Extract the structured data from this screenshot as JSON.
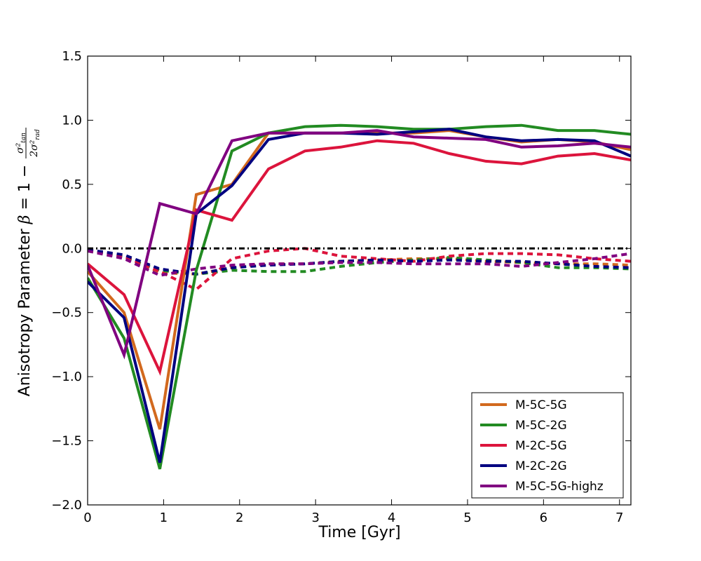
{
  "chart_data": {
    "type": "line",
    "title": "",
    "xlabel": "Time [Gyr]",
    "ylabel": {
      "prefix": "Anisotropy Parameter ",
      "beta": "β",
      "eq": " = 1 − ",
      "num": "σ²",
      "num_sub": "tan",
      "den": "2σ²",
      "den_sub": "rad"
    },
    "xlim": [
      0,
      7.15
    ],
    "ylim": [
      -2.0,
      1.5
    ],
    "xticks": [
      0,
      1,
      2,
      3,
      4,
      5,
      6,
      7
    ],
    "xtick_labels": [
      "0",
      "1",
      "2",
      "3",
      "4",
      "5",
      "6",
      "7"
    ],
    "yticks": [
      -2.0,
      -1.5,
      -1.0,
      -0.5,
      0.0,
      0.5,
      1.0,
      1.5
    ],
    "ytick_labels": [
      "−2.0",
      "−1.5",
      "−1.0",
      "−0.5",
      "0.0",
      "0.5",
      "1.0",
      "1.5"
    ],
    "reference_line": {
      "y": 0.0,
      "style": "dash-dot",
      "color": "#000000"
    },
    "legend_position": "lower-right",
    "x": [
      0,
      0.48,
      0.95,
      1.43,
      1.9,
      2.38,
      2.86,
      3.33,
      3.81,
      4.29,
      4.76,
      5.24,
      5.71,
      6.19,
      6.67,
      7.15
    ],
    "series": [
      {
        "name": "M-5C-5G",
        "color": "#d2691e",
        "solid": [
          -0.18,
          -0.5,
          -1.41,
          0.42,
          0.5,
          0.9,
          0.9,
          0.9,
          0.9,
          0.9,
          0.92,
          0.87,
          0.83,
          0.85,
          0.83,
          0.77
        ],
        "dashed": [
          -0.02,
          -0.06,
          -0.19,
          -0.2,
          -0.15,
          -0.12,
          -0.12,
          -0.1,
          -0.09,
          -0.08,
          -0.08,
          -0.1,
          -0.11,
          -0.12,
          -0.12,
          -0.13
        ]
      },
      {
        "name": "M-5C-2G",
        "color": "#228b22",
        "solid": [
          -0.23,
          -0.7,
          -1.72,
          -0.17,
          0.76,
          0.9,
          0.95,
          0.96,
          0.95,
          0.93,
          0.93,
          0.95,
          0.96,
          0.92,
          0.92,
          0.89
        ],
        "dashed": [
          -0.02,
          -0.07,
          -0.17,
          -0.2,
          -0.17,
          -0.18,
          -0.18,
          -0.14,
          -0.11,
          -0.09,
          -0.07,
          -0.09,
          -0.11,
          -0.15,
          -0.15,
          -0.16
        ]
      },
      {
        "name": "M-2C-5G",
        "color": "#dc143c",
        "solid": [
          -0.12,
          -0.36,
          -0.96,
          0.3,
          0.22,
          0.62,
          0.76,
          0.79,
          0.84,
          0.82,
          0.74,
          0.68,
          0.66,
          0.72,
          0.74,
          0.69
        ],
        "dashed": [
          -0.01,
          -0.06,
          -0.18,
          -0.32,
          -0.08,
          -0.02,
          0.0,
          -0.06,
          -0.08,
          -0.1,
          -0.06,
          -0.04,
          -0.04,
          -0.05,
          -0.08,
          -0.1
        ]
      },
      {
        "name": "M-2C-2G",
        "color": "#000080",
        "solid": [
          -0.26,
          -0.54,
          -1.67,
          0.27,
          0.49,
          0.85,
          0.9,
          0.9,
          0.89,
          0.91,
          0.93,
          0.87,
          0.84,
          0.85,
          0.84,
          0.72
        ],
        "dashed": [
          -0.01,
          -0.05,
          -0.16,
          -0.2,
          -0.15,
          -0.13,
          -0.12,
          -0.1,
          -0.09,
          -0.1,
          -0.09,
          -0.1,
          -0.1,
          -0.12,
          -0.14,
          -0.15
        ]
      },
      {
        "name": "M-5C-5G-highz",
        "color": "#800080",
        "solid": [
          -0.13,
          -0.83,
          0.35,
          0.27,
          0.84,
          0.9,
          0.9,
          0.9,
          0.92,
          0.87,
          0.86,
          0.85,
          0.79,
          0.8,
          0.82,
          0.79
        ],
        "dashed": [
          -0.02,
          -0.08,
          -0.21,
          -0.16,
          -0.13,
          -0.12,
          -0.12,
          -0.11,
          -0.11,
          -0.12,
          -0.12,
          -0.12,
          -0.14,
          -0.11,
          -0.08,
          -0.04
        ]
      }
    ]
  }
}
